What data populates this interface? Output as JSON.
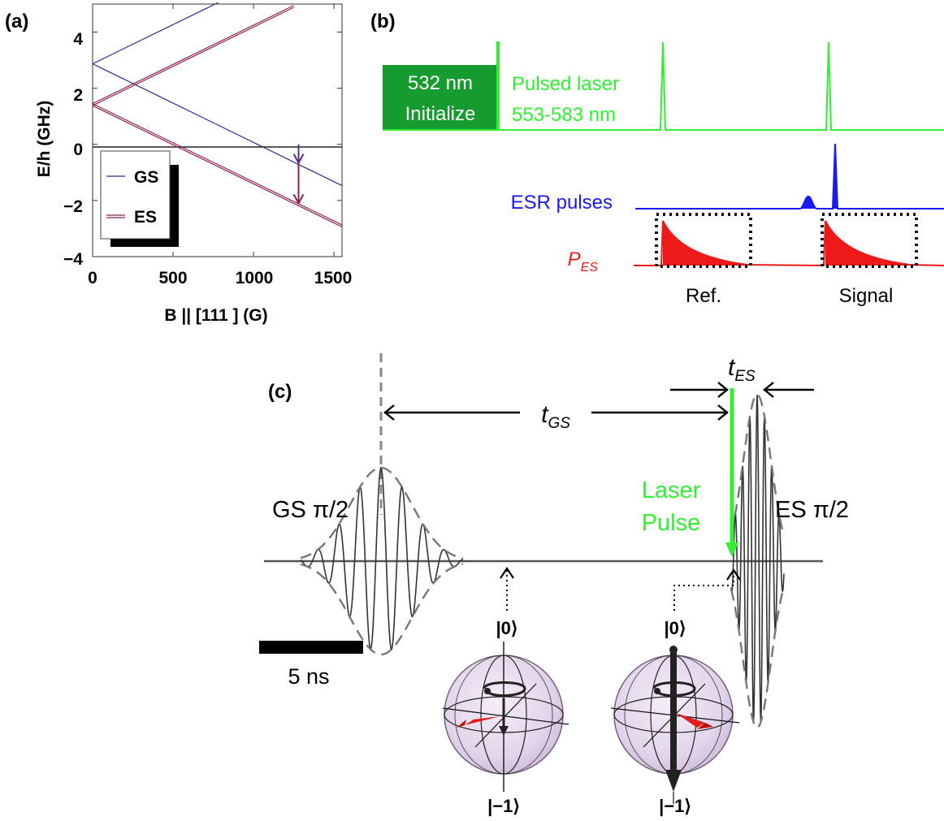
{
  "panel_a": {
    "label": "(a)",
    "ylabel": "E/h (GHz)",
    "xlabel": "B || [111 ] (G)",
    "legend": [
      {
        "name": "GS",
        "color": "#2e2a8c"
      },
      {
        "name": "ES",
        "color": "#8b2451"
      }
    ],
    "chart_data": {
      "type": "line",
      "xlim": [
        0,
        1550
      ],
      "ylim": [
        -4,
        5
      ],
      "xticks": [
        "0",
        "500",
        "1000",
        "1500"
      ],
      "yticks": [
        "4",
        "2",
        "0",
        "−2",
        "−4"
      ],
      "series": [
        {
          "name": "GS",
          "x": [
            0,
            780
          ],
          "y": [
            2.87,
            5.05
          ]
        },
        {
          "name": "GS",
          "x": [
            0,
            1550
          ],
          "y": [
            2.87,
            -1.47
          ]
        },
        {
          "name": "ES",
          "x": [
            0,
            1250
          ],
          "y": [
            1.45,
            4.95
          ]
        },
        {
          "name": "ES",
          "x": [
            0,
            1250
          ],
          "y": [
            1.38,
            4.88
          ]
        },
        {
          "name": "ES",
          "x": [
            0,
            1550
          ],
          "y": [
            1.45,
            -2.87
          ]
        },
        {
          "name": "ES",
          "x": [
            0,
            1550
          ],
          "y": [
            1.38,
            -2.94
          ]
        },
        {
          "name": "",
          "x": [
            0,
            1550
          ],
          "y": [
            0,
            0
          ]
        }
      ],
      "annotations": [
        {
          "x": 1280,
          "y_from": 0.0,
          "y_to": -0.66,
          "color": "#5a2f8a"
        },
        {
          "x": 1280,
          "y_from": -0.66,
          "y_to": -2.1,
          "color": "#8b2451"
        }
      ]
    }
  },
  "panel_b": {
    "label": "(b)",
    "init_line1": "532 nm",
    "init_line2": "Initialize",
    "laser_line1": "Pulsed laser",
    "laser_line2": "553-583 nm",
    "esr_label": "ESR pulses",
    "pes_main": "P",
    "pes_sub": "ES",
    "ref_label": "Ref.",
    "signal_label": "Signal",
    "colors": {
      "init_box": "#169b2e",
      "laser": "#33ee33",
      "esr": "#1a1aee",
      "pes": "#ee1a1a"
    }
  },
  "panel_c": {
    "label": "(c)",
    "tgs_main": "t",
    "tgs_sub": "GS",
    "tes_main": "t",
    "tes_sub": "ES",
    "gs_pulse_label": "GS π/2",
    "es_pulse_label": "ES π/2",
    "laser_line1": "Laser",
    "laser_line2": "Pulse",
    "scalebar_label": "5 ns",
    "ket_zero": "|0⟩",
    "ket_minus_one": "|−1⟩"
  }
}
